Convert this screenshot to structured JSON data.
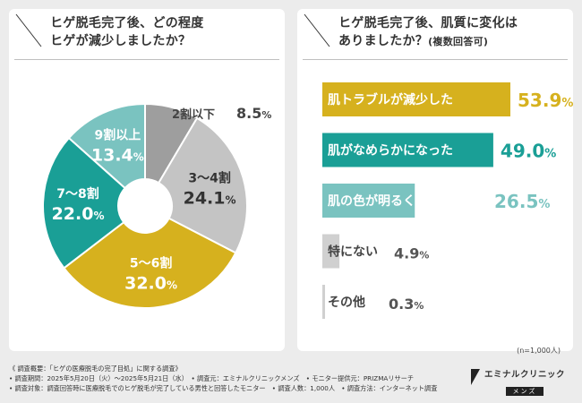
{
  "left_title": [
    "ヒゲ脱毛完了後、どの程度",
    "ヒゲが減少しましたか？"
  ],
  "right_title": [
    "ヒゲ脱毛完了後、肌質に変化は",
    "ありましたか？"
  ],
  "right_title_sub": "(複数回答可)",
  "colors": {
    "gray_dark": "#9e9e9e",
    "gray_light": "#c4c4c4",
    "gold": "#d6b11e",
    "teal": "#1a9f96",
    "teal_light": "#7ac3c0",
    "bar_gray": "#d0d0d0"
  },
  "chart_data": [
    {
      "type": "pie",
      "donut": true,
      "slices": [
        {
          "label": "2割以下",
          "value": 8.5,
          "display": [
            "8.",
            "5",
            "%"
          ]
        },
        {
          "label": "3〜4割",
          "value": 24.1,
          "display": [
            "24.",
            "1",
            "%"
          ]
        },
        {
          "label": "5〜6割",
          "value": 32.0,
          "display": [
            "32.",
            "0",
            "%"
          ]
        },
        {
          "label": "7〜8割",
          "value": 22.0,
          "display": [
            "22.",
            "0",
            "%"
          ]
        },
        {
          "label": "9割以上",
          "value": 13.4,
          "display": [
            "13.",
            "4",
            "%"
          ]
        }
      ]
    },
    {
      "type": "bar",
      "orientation": "horizontal",
      "categories": [
        "肌トラブルが減少した",
        "肌がなめらかになった",
        "肌の色が明るくなった",
        "特にない",
        "その他"
      ],
      "values": [
        53.9,
        49.0,
        26.5,
        4.9,
        0.3
      ],
      "display": [
        [
          "53.",
          "9",
          "%"
        ],
        [
          "49.",
          "0",
          "%"
        ],
        [
          "26.",
          "5",
          "%"
        ],
        [
          "4.",
          "9",
          "%"
        ],
        [
          "0.",
          "3",
          "%"
        ]
      ],
      "note": "(n=1,000人)"
    }
  ],
  "footer": [
    "《 調査概要：「ヒゲの医療脱毛の完了目処」に関する調査》",
    "• 調査期間：2025年5月20日（火）〜2025年5月21日（水）　• 調査元：エミナルクリニックメンズ　• モニター提供元：PRIZMAリサーチ",
    "• 調査対象：調査回答時に医療脱毛でのヒゲ脱毛が完了している男性と回答したモニター　• 調査人数：1,000人　• 調査方法：インターネット調査"
  ],
  "logo": {
    "main": "エミナルクリニック",
    "sub": "メンズ"
  }
}
